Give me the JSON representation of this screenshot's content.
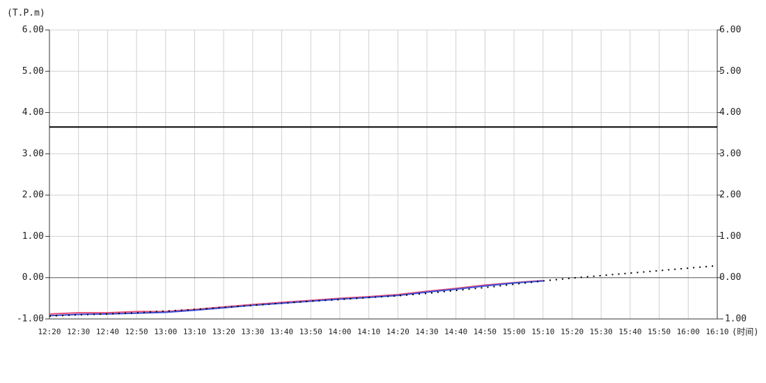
{
  "chart_data": {
    "type": "line",
    "y_label": "(T.P.m)",
    "x_label": "(时间)",
    "categories": [
      "12:20",
      "12:30",
      "12:40",
      "12:50",
      "13:00",
      "13:10",
      "13:20",
      "13:30",
      "13:40",
      "13:50",
      "14:00",
      "14:10",
      "14:20",
      "14:30",
      "14:40",
      "14:50",
      "15:00",
      "15:10",
      "15:20",
      "15:30",
      "15:40",
      "15:50",
      "16:00",
      "16:10"
    ],
    "series": [
      {
        "color": "#e8507a",
        "style": "solid",
        "values": [
          -0.88,
          -0.85,
          -0.85,
          -0.82,
          -0.82,
          -0.77,
          -0.71,
          -0.65,
          -0.6,
          -0.55,
          -0.5,
          -0.46,
          -0.41,
          -0.33,
          -0.26,
          -0.18,
          -0.12,
          -0.07,
          null,
          null,
          null,
          null,
          null,
          null
        ]
      },
      {
        "color": "#3a4fd8",
        "style": "solid",
        "values": [
          -0.92,
          -0.89,
          -0.88,
          -0.86,
          -0.84,
          -0.79,
          -0.73,
          -0.67,
          -0.62,
          -0.57,
          -0.52,
          -0.48,
          -0.43,
          -0.35,
          -0.28,
          -0.2,
          -0.13,
          -0.08,
          null,
          null,
          null,
          null,
          null,
          null
        ]
      },
      {
        "color": "#000000",
        "style": "dotted",
        "values": [
          -0.93,
          -0.9,
          -0.88,
          -0.85,
          -0.81,
          -0.77,
          -0.72,
          -0.67,
          -0.62,
          -0.57,
          -0.53,
          -0.48,
          -0.44,
          -0.38,
          -0.31,
          -0.24,
          -0.16,
          -0.08,
          -0.01,
          0.05,
          0.11,
          0.17,
          0.23,
          0.29
        ]
      }
    ],
    "reference_line": {
      "value": 3.65,
      "color": "#000000"
    },
    "ylim": [
      -1,
      6
    ],
    "yticks": [
      {
        "value": -1,
        "label": "-1.00"
      },
      {
        "value": 0,
        "label": "0.00"
      },
      {
        "value": 1,
        "label": "1.00"
      },
      {
        "value": 2,
        "label": "2.00"
      },
      {
        "value": 3,
        "label": "3.00"
      },
      {
        "value": 4,
        "label": "4.00"
      },
      {
        "value": 5,
        "label": "5.00"
      },
      {
        "value": 6,
        "label": "6.00"
      }
    ],
    "y2lim": [
      -1,
      6
    ],
    "y2ticks": [
      {
        "value": -1,
        "label": "-1.00"
      },
      {
        "value": 0,
        "label": "0.00"
      },
      {
        "value": 1,
        "label": "1.00"
      },
      {
        "value": 2,
        "label": "2.00"
      },
      {
        "value": 3,
        "label": "3.00"
      },
      {
        "value": 4,
        "label": "4.00"
      },
      {
        "value": 5,
        "label": "5.00"
      },
      {
        "value": 6,
        "label": "6.00"
      }
    ],
    "grid": true
  }
}
